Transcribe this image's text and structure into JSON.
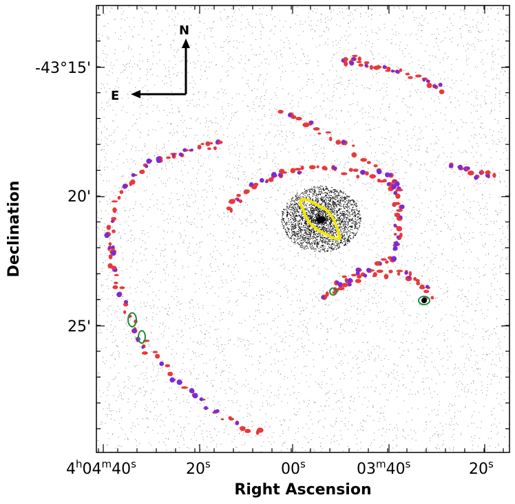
{
  "axes": {
    "xlabel": "Right Ascension",
    "ylabel": "Declination",
    "x_ticks": [
      {
        "label": "4h04m40s",
        "pre": "4",
        "h": "h",
        "mid1": "04",
        "m": "m",
        "mid2": "40",
        "s": "s"
      },
      {
        "label": "20s",
        "pre": "20",
        "s": "s"
      },
      {
        "label": "00s",
        "pre": "00",
        "s": "s"
      },
      {
        "label": "03m40s",
        "pre": "03",
        "m": "m",
        "mid2": "40",
        "s": "s"
      },
      {
        "label": "20s",
        "pre": "20",
        "s": "s"
      }
    ],
    "y_ticks": [
      "-43°15'",
      "20'",
      "25'"
    ]
  },
  "compass": {
    "north": "N",
    "east": "E"
  },
  "colors": {
    "hi_region": "#e8393b",
    "uv_region": "#7a2bd6",
    "contour_green": "#1f8a3a",
    "nucleus_contour": "#f2e600",
    "stellar_noise": "#000000"
  }
}
